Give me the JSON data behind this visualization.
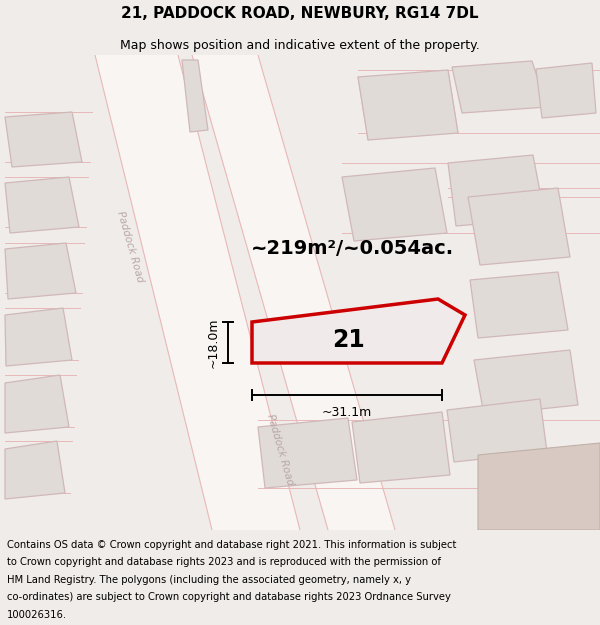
{
  "title": "21, PADDOCK ROAD, NEWBURY, RG14 7DL",
  "subtitle": "Map shows position and indicative extent of the property.",
  "area_label": "~219m²/~0.054ac.",
  "dim_vertical": "~18.0m",
  "dim_horizontal": "~31.1m",
  "plot_number": "21",
  "footer_lines": [
    "Contains OS data © Crown copyright and database right 2021. This information is subject",
    "to Crown copyright and database rights 2023 and is reproduced with the permission of",
    "HM Land Registry. The polygons (including the associated geometry, namely x, y",
    "co-ordinates) are subject to Crown copyright and database rights 2023 Ordnance Survey",
    "100026316."
  ],
  "bg_color": "#f0ece9",
  "map_bg": "#ece8e4",
  "road_color": "#f8f5f2",
  "building_fill": "#e0dbd7",
  "building_edge": "#d0b8b8",
  "plot_edge": "#cc0000",
  "plot_fill": "#f0eaea",
  "road_label_color": "#b8a8a8",
  "footer_bg": "#ffffff",
  "pink_line": "#e8b8b8",
  "title_fontsize": 11,
  "subtitle_fontsize": 9,
  "footer_fontsize": 7.2
}
